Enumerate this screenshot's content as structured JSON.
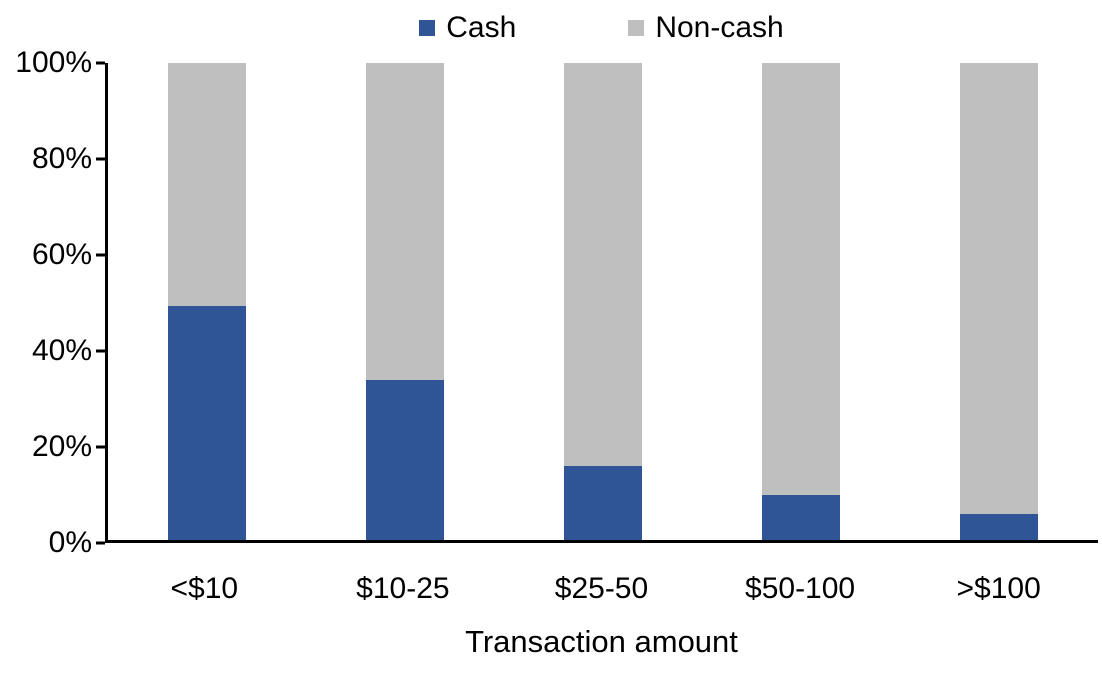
{
  "chart_data": {
    "type": "bar",
    "stacked": true,
    "stacked_total": 100,
    "categories": [
      "<$10",
      "$10-25",
      "$25-50",
      "$50-100",
      ">$100"
    ],
    "series": [
      {
        "name": "Cash",
        "color": "#2F5597",
        "values": [
          49,
          33.5,
          15.5,
          9.5,
          5.5
        ]
      },
      {
        "name": "Non-cash",
        "color": "#BFBFBF",
        "values": [
          51,
          66.5,
          84.5,
          90.5,
          94.5
        ]
      }
    ],
    "title": "",
    "xlabel": "Transaction amount",
    "ylabel": "",
    "ylim": [
      0,
      100
    ],
    "yticks": [
      "0%",
      "20%",
      "40%",
      "60%",
      "80%",
      "100%"
    ],
    "grid": false,
    "legend_position": "top",
    "axis_color": "#000000",
    "background_color": "#FFFFFF"
  }
}
